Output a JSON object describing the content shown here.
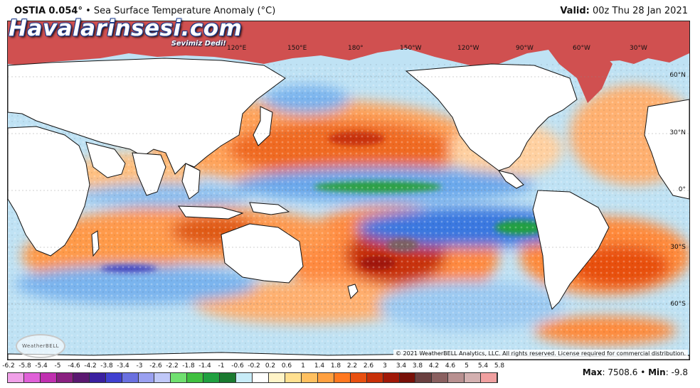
{
  "header": {
    "product": "OSTIA",
    "value": "0.054°",
    "separator": "•",
    "variable": "Sea Surface Temperature Anomaly (°C)",
    "valid_label": "Valid:",
    "valid_value": "00z Thu 28 Jan 2021"
  },
  "watermark": {
    "site": "Havalarinsesi.com",
    "slogan": "Sevimiz Dedi!"
  },
  "map": {
    "longitude_labels": [
      "120°E",
      "150°E",
      "180°",
      "150°W",
      "120°W",
      "90°W",
      "60°W",
      "30°W"
    ],
    "latitude_labels": [
      "60°N",
      "30°N",
      "0°",
      "30°S",
      "60°S"
    ],
    "provider_logo": "WeatherBELL",
    "copyright": "© 2021 WeatherBELL Analytics, LLC. All rights reserved. License required for commercial distribution."
  },
  "colorbar": {
    "tick_labels": [
      "-6.2",
      "-5.8",
      "-5.4",
      "-5",
      "-4.6",
      "-4.2",
      "-3.8",
      "-3.4",
      "-3",
      "-2.6",
      "-2.2",
      "-1.8",
      "-1.4",
      "-1",
      "-0.6",
      "-0.2",
      "0.2",
      "0.6",
      "1",
      "1.4",
      "1.8",
      "2.2",
      "2.6",
      "3",
      "3.4",
      "3.8",
      "4.2",
      "4.6",
      "5",
      "5.4",
      "5.8"
    ],
    "colors": [
      "#f0a0e8",
      "#e060d8",
      "#c030b0",
      "#8a2080",
      "#5a1870",
      "#3a20a0",
      "#4040d0",
      "#6a70e0",
      "#9aa0f0",
      "#c0c8f8",
      "#70e070",
      "#40c040",
      "#20a040",
      "#1a7a30",
      "#c8ecf8",
      "#ffffff",
      "#fff4c8",
      "#ffe090",
      "#ffc060",
      "#ffa040",
      "#ff7820",
      "#e85010",
      "#c83008",
      "#a01808",
      "#781008",
      "#6a4040",
      "#8a6060",
      "#b89090",
      "#d4b0b0",
      "#f0a0a0",
      "#e06070"
    ]
  },
  "stats": {
    "max_label": "Max",
    "max_value": "7508.6",
    "separator": "•",
    "min_label": "Min",
    "min_value": "-9.8"
  }
}
